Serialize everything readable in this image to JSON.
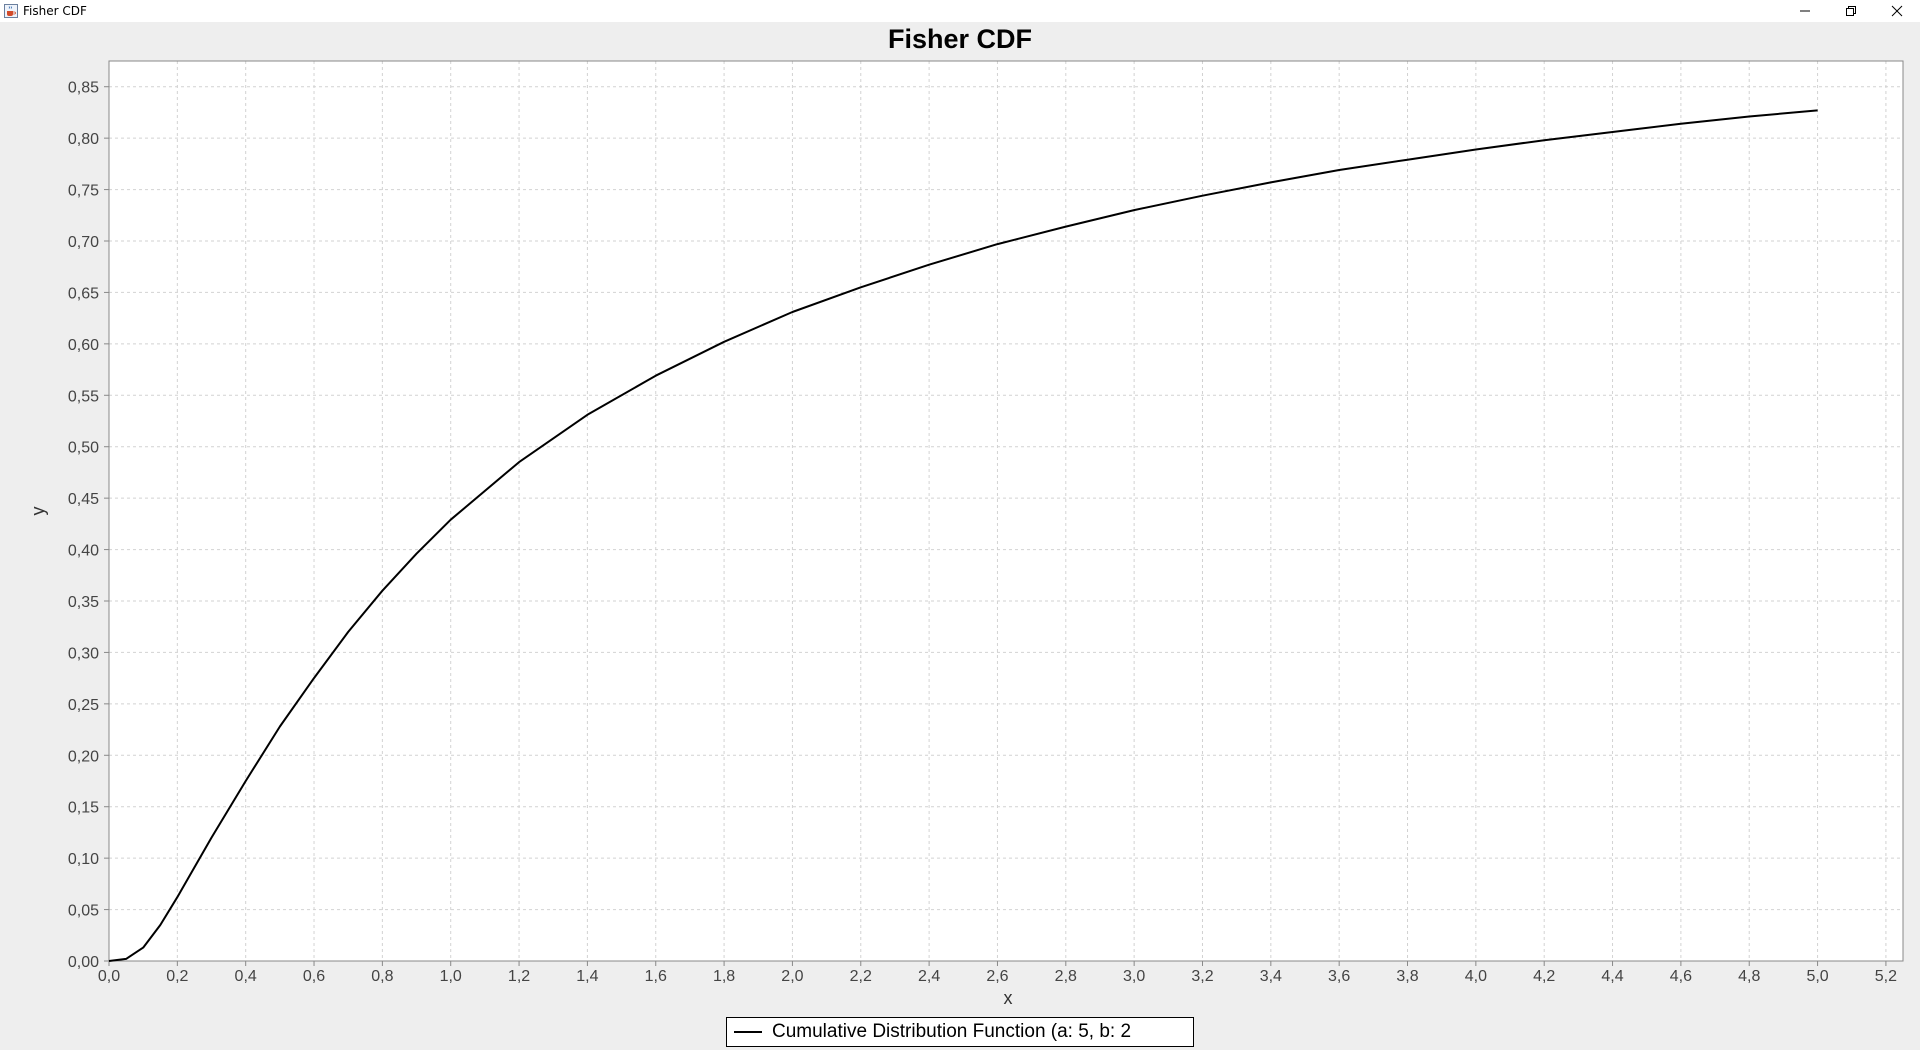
{
  "window": {
    "title": "Fisher CDF",
    "icon": "java-cup-icon",
    "controls": [
      "minimize-icon",
      "restore-icon",
      "close-icon"
    ]
  },
  "chart_data": {
    "type": "line",
    "title": "Fisher CDF",
    "xlabel": "x",
    "ylabel": "y",
    "xlim": [
      0,
      5.25
    ],
    "ylim": [
      0,
      0.875
    ],
    "xticks": [
      "0,0",
      "0,2",
      "0,4",
      "0,6",
      "0,8",
      "1,0",
      "1,2",
      "1,4",
      "1,6",
      "1,8",
      "2,0",
      "2,2",
      "2,4",
      "2,6",
      "2,8",
      "3,0",
      "3,2",
      "3,4",
      "3,6",
      "3,8",
      "4,0",
      "4,2",
      "4,4",
      "4,6",
      "4,8",
      "5,0",
      "5,2"
    ],
    "yticks": [
      "0,00",
      "0,05",
      "0,10",
      "0,15",
      "0,20",
      "0,25",
      "0,30",
      "0,35",
      "0,40",
      "0,45",
      "0,50",
      "0,55",
      "0,60",
      "0,65",
      "0,70",
      "0,75",
      "0,80",
      "0,85"
    ],
    "grid": true,
    "legend_position": "bottom",
    "series": [
      {
        "name": "Cumulative Distribution Function (a: 5, b: 2",
        "color": "#000000",
        "x": [
          0.0,
          0.05,
          0.1,
          0.15,
          0.2,
          0.3,
          0.4,
          0.5,
          0.6,
          0.7,
          0.8,
          0.9,
          1.0,
          1.2,
          1.4,
          1.6,
          1.8,
          2.0,
          2.2,
          2.4,
          2.6,
          2.8,
          3.0,
          3.2,
          3.4,
          3.6,
          3.8,
          4.0,
          4.2,
          4.4,
          4.6,
          4.8,
          5.0
        ],
        "y": [
          0.0,
          0.002,
          0.013,
          0.035,
          0.062,
          0.12,
          0.175,
          0.228,
          0.275,
          0.32,
          0.36,
          0.396,
          0.429,
          0.485,
          0.531,
          0.569,
          0.602,
          0.631,
          0.655,
          0.677,
          0.697,
          0.714,
          0.73,
          0.744,
          0.757,
          0.769,
          0.779,
          0.789,
          0.798,
          0.806,
          0.814,
          0.821,
          0.827
        ]
      }
    ]
  }
}
